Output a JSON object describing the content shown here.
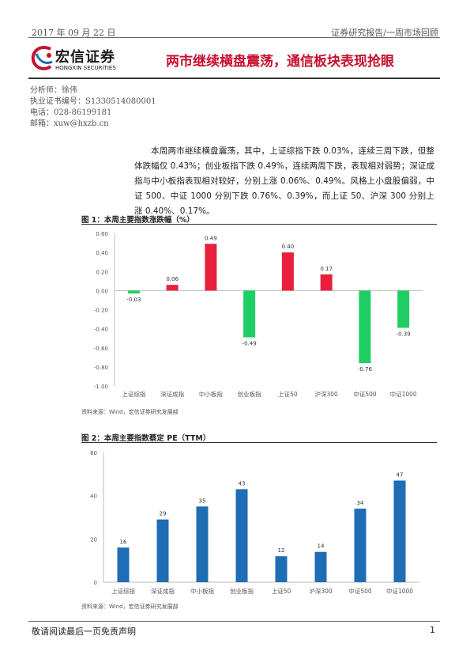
{
  "header": {
    "date": "2017 年 09 月 22 日",
    "category": "证券研究报告/一周市场回顾"
  },
  "brand": {
    "name": "宏信证券",
    "subname": "HONGXIN SECURITIES",
    "accent": "#c8102e"
  },
  "report_title": "两市继续横盘震荡，通信板块表现抢眼",
  "analyst": {
    "name_line": "分析师：徐伟",
    "cert_line": "执业证书编号：S1330514080001",
    "phone_line": "电话：028-86199181",
    "email_line": "邮箱：xuw@hxzb.cn"
  },
  "summary": "本周两市继续横盘震荡，其中，上证综指下跌 0.03%，连续三周下跌，但整体跌幅仅 0.43%；创业板指下跌 0.49%，连续两周下跌，表现相对弱势；深证成指与中小板指表现相对较好，分别上涨 0.06%、0.49%。风格上小盘股偏弱，中证 500、中证 1000 分别下跌 0.76%、0.39%，而上证 50、沪深 300 分别上涨 0.40%、0.17%。",
  "figure1": {
    "title": "图 1：本周主要指数涨跌幅（%）",
    "source": "资料来源：Wind，宏信证券研究发展部"
  },
  "figure2": {
    "title": "图 2：本周主要指数蔡定 PE（TTM）",
    "source": "资料来源：Wind，宏信证券研究发展部"
  },
  "chart_data": [
    {
      "type": "bar",
      "categories": [
        "上证综指",
        "深证成指",
        "中小板指",
        "创业板指",
        "上证50",
        "沪深300",
        "中证500",
        "中证1000"
      ],
      "values": [
        -0.03,
        0.06,
        0.49,
        -0.49,
        0.4,
        0.17,
        -0.76,
        -0.39
      ],
      "data_labels": [
        "-0.03",
        "0.06",
        "0.49",
        "-0.49",
        "0.40",
        "0.17",
        "-0.76",
        "-0.39"
      ],
      "ylim": [
        -1.0,
        0.6
      ],
      "yticks": [
        "0.60",
        "0.40",
        "0.20",
        "0.00",
        "-0.20",
        "-0.40",
        "-0.60",
        "-0.80",
        "-1.00"
      ],
      "ytick_values": [
        0.6,
        0.4,
        0.2,
        0.0,
        -0.2,
        -0.4,
        -0.6,
        -0.8,
        -1.0
      ],
      "colors": {
        "positive": "#e8203c",
        "negative": "#1fcf63"
      },
      "grid": false,
      "title": "",
      "xlabel": "",
      "ylabel": ""
    },
    {
      "type": "bar",
      "categories": [
        "上证综指",
        "深证成指",
        "中小板指",
        "创业板指",
        "上证50",
        "沪深300",
        "中证500",
        "中证1000"
      ],
      "values": [
        16,
        29,
        35,
        43,
        12,
        14,
        34,
        47
      ],
      "data_labels": [
        "16",
        "29",
        "35",
        "43",
        "12",
        "14",
        "34",
        "47"
      ],
      "ylim": [
        0,
        60
      ],
      "yticks": [
        "60",
        "40",
        "20",
        "0"
      ],
      "ytick_values": [
        60,
        40,
        20,
        0
      ],
      "colors": {
        "bar": "#1f6db5"
      },
      "grid": false,
      "title": "",
      "xlabel": "",
      "ylabel": ""
    }
  ],
  "footer": {
    "disclaimer": "敬请阅读最后一页免责声明",
    "page_number": "1"
  }
}
